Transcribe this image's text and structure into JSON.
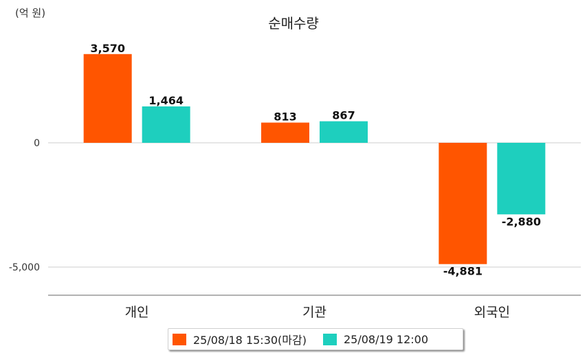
{
  "unit_label": "(억 원)",
  "chart_data": {
    "type": "bar",
    "title": "순매수량",
    "ylabel": "(억 원)",
    "xlabel": "",
    "categories": [
      "개인",
      "기관",
      "외국인"
    ],
    "series": [
      {
        "name": "25/08/18 15:30(마감)",
        "color": "#ff5500",
        "values": [
          3570,
          813,
          -4881
        ]
      },
      {
        "name": "25/08/19 12:00",
        "color": "#1ecfbe",
        "values": [
          1464,
          867,
          -2880
        ]
      }
    ],
    "yticks": [
      0,
      -5000
    ],
    "ytick_labels": [
      "0",
      "-5,000"
    ],
    "value_labels": [
      [
        "3,570",
        "813",
        "-4,881"
      ],
      [
        "1,464",
        "867",
        "-2,880"
      ]
    ],
    "ylim": [
      -6000,
      4200
    ],
    "grid": true,
    "legend": "bottom"
  }
}
